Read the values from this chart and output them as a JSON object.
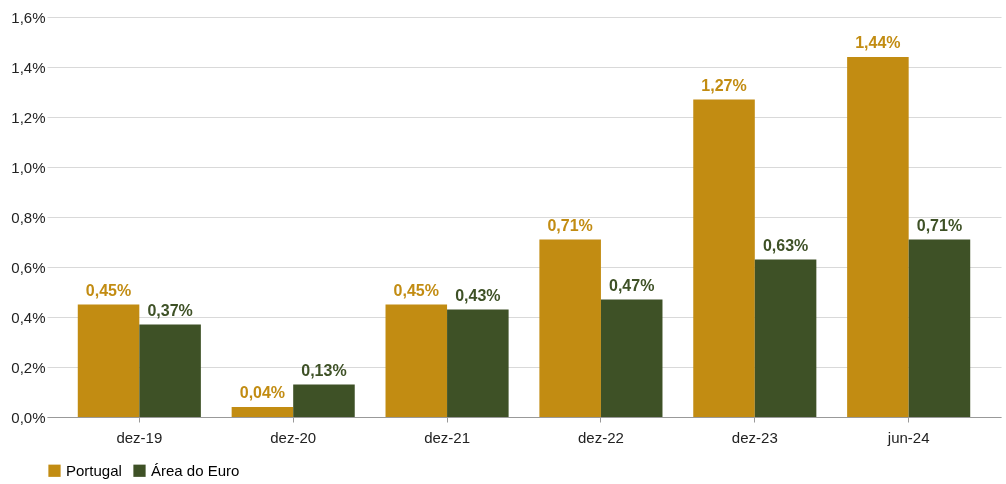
{
  "chart_data": {
    "type": "bar",
    "categories": [
      "dez-19",
      "dez-20",
      "dez-21",
      "dez-22",
      "dez-23",
      "jun-24"
    ],
    "series": [
      {
        "name": "Portugal",
        "color": "#c28c12",
        "values": [
          0.45,
          0.04,
          0.45,
          0.71,
          1.27,
          1.44
        ],
        "value_labels": [
          "0,45%",
          "0,04%",
          "0,45%",
          "0,71%",
          "1,27%",
          "1,44%"
        ]
      },
      {
        "name": "Área do Euro",
        "color": "#3e5126",
        "values": [
          0.37,
          0.13,
          0.43,
          0.47,
          0.63,
          0.71
        ],
        "value_labels": [
          "0,37%",
          "0,13%",
          "0,43%",
          "0,47%",
          "0,63%",
          "0,71%"
        ]
      }
    ],
    "ylim": [
      0,
      1.6
    ],
    "yticks": [
      {
        "value": 0,
        "label": "0,0%"
      },
      {
        "value": 0.2,
        "label": "0,2%"
      },
      {
        "value": 0.4,
        "label": "0,4%"
      },
      {
        "value": 0.6,
        "label": "0,6%"
      },
      {
        "value": 0.8,
        "label": "0,8%"
      },
      {
        "value": 1.0,
        "label": "1,0%"
      },
      {
        "value": 1.2,
        "label": "1,2%"
      },
      {
        "value": 1.4,
        "label": "1,4%"
      },
      {
        "value": 1.6,
        "label": "1,6%"
      }
    ],
    "grid": "y",
    "legend": "bottom"
  }
}
